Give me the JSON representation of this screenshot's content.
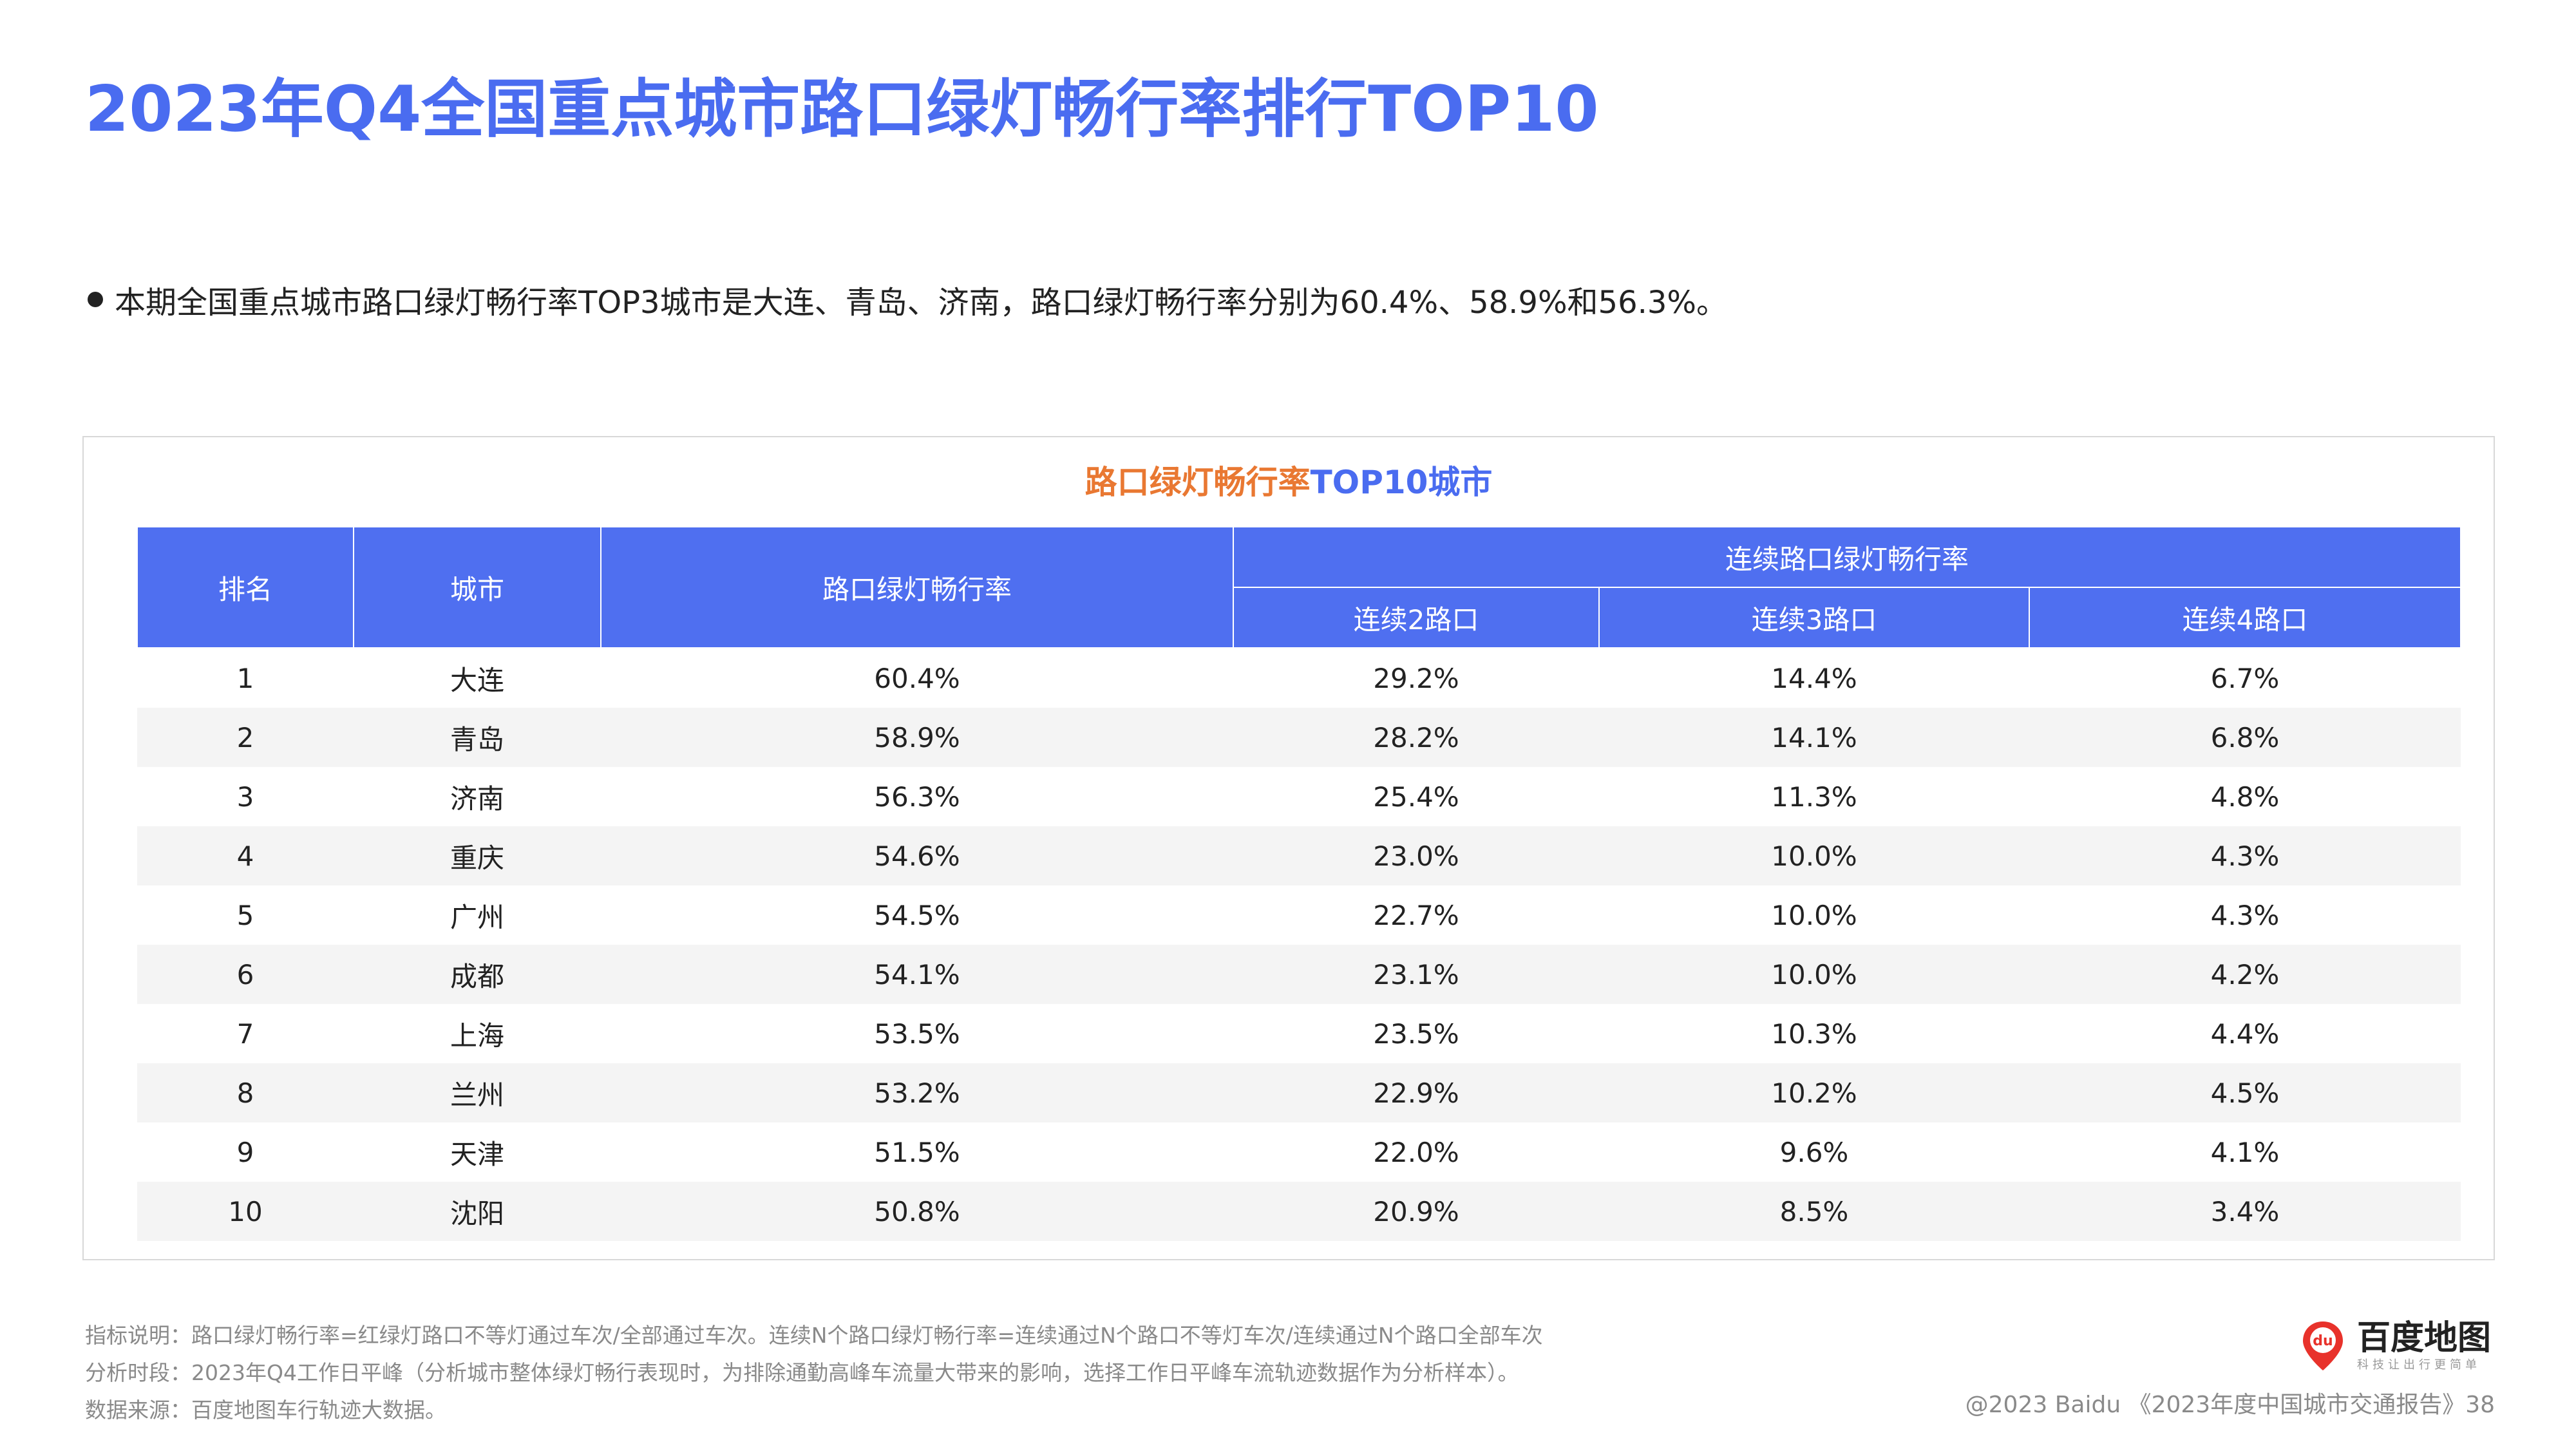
{
  "title": "2023年Q4全国重点城市路口绿灯畅行率排行TOP10",
  "summary": "本期全国重点城市路口绿灯畅行率TOP3城市是大连、青岛、济南，路口绿灯畅行率分别为60.4%、58.9%和56.3%。",
  "table": {
    "title_part1": "路口绿灯畅行率",
    "title_part2": "TOP10城市",
    "headers": {
      "rank": "排名",
      "city": "城市",
      "rate": "路口绿灯畅行率",
      "continuous": "连续路口绿灯畅行率",
      "c2": "连续2路口",
      "c3": "连续3路口",
      "c4": "连续4路口"
    },
    "rows": [
      {
        "rank": "1",
        "city": "大连",
        "rate": "60.4%",
        "c2": "29.2%",
        "c3": "14.4%",
        "c4": "6.7%"
      },
      {
        "rank": "2",
        "city": "青岛",
        "rate": "58.9%",
        "c2": "28.2%",
        "c3": "14.1%",
        "c4": "6.8%"
      },
      {
        "rank": "3",
        "city": "济南",
        "rate": "56.3%",
        "c2": "25.4%",
        "c3": "11.3%",
        "c4": "4.8%"
      },
      {
        "rank": "4",
        "city": "重庆",
        "rate": "54.6%",
        "c2": "23.0%",
        "c3": "10.0%",
        "c4": "4.3%"
      },
      {
        "rank": "5",
        "city": "广州",
        "rate": "54.5%",
        "c2": "22.7%",
        "c3": "10.0%",
        "c4": "4.3%"
      },
      {
        "rank": "6",
        "city": "成都",
        "rate": "54.1%",
        "c2": "23.1%",
        "c3": "10.0%",
        "c4": "4.2%"
      },
      {
        "rank": "7",
        "city": "上海",
        "rate": "53.5%",
        "c2": "23.5%",
        "c3": "10.3%",
        "c4": "4.4%"
      },
      {
        "rank": "8",
        "city": "兰州",
        "rate": "53.2%",
        "c2": "22.9%",
        "c3": "10.2%",
        "c4": "4.5%"
      },
      {
        "rank": "9",
        "city": "天津",
        "rate": "51.5%",
        "c2": "22.0%",
        "c3": "9.6%",
        "c4": "4.1%"
      },
      {
        "rank": "10",
        "city": "沈阳",
        "rate": "50.8%",
        "c2": "20.9%",
        "c3": "8.5%",
        "c4": "3.4%"
      }
    ]
  },
  "footer": {
    "definition": "指标说明：路口绿灯畅行率=红绿灯路口不等灯通过车次/全部通过车次。连续N个路口绿灯畅行率=连续通过N个路口不等灯车次/连续通过N个路口全部车次",
    "period": "分析时段：2023年Q4工作日平峰（分析城市整体绿灯畅行表现时，为排除通勤高峰车流量大带来的影响，选择工作日平峰车流轨迹数据作为分析样本）。",
    "source": "数据来源：百度地图车行轨迹大数据。"
  },
  "brand": {
    "name": "百度地图",
    "slogan": "科技让出行更简单",
    "icon_text": "du",
    "icon": "map-pin-icon"
  },
  "copyright": "@2023 Baidu 《2023年度中国城市交通报告》38",
  "colors": {
    "title": "#4a6cf0",
    "header_bg": "#4f6ff0",
    "accent_orange": "#e97832",
    "brand_red": "#e8322b"
  }
}
